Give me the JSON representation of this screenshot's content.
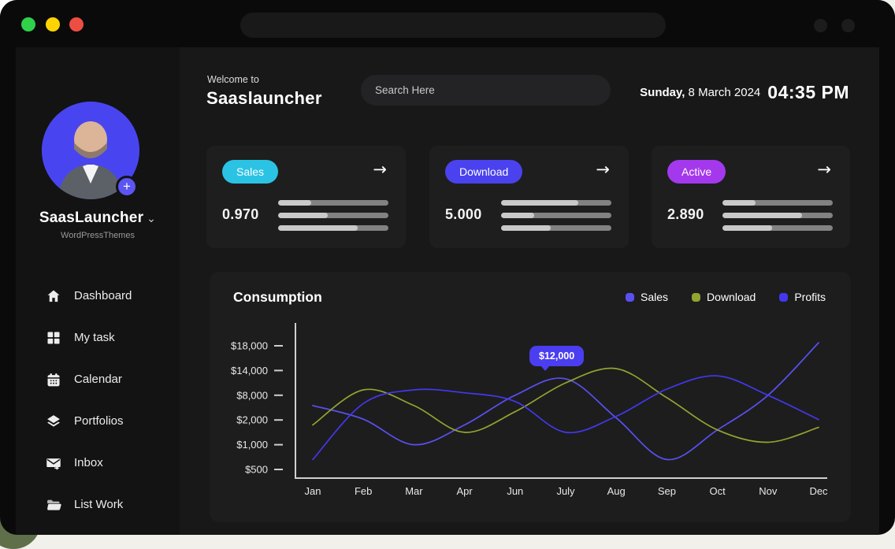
{
  "window": {
    "traffic_lights": {
      "green": "#2fd14b",
      "yellow": "#fdd402",
      "red": "#ee4d42"
    }
  },
  "icons": {
    "arrow_right": "→",
    "caret_down": "⌄",
    "plus": "+"
  },
  "sidebar": {
    "profile": {
      "name": "SaasLauncher",
      "subtitle": "WordPressThemes"
    },
    "items": [
      {
        "label": "Dashboard",
        "icon": "home-icon"
      },
      {
        "label": "My task",
        "icon": "grid-icon"
      },
      {
        "label": "Calendar",
        "icon": "calendar-icon"
      },
      {
        "label": "Portfolios",
        "icon": "layers-icon"
      },
      {
        "label": "Inbox",
        "icon": "inbox-icon"
      },
      {
        "label": "List Work",
        "icon": "folder-icon"
      }
    ]
  },
  "header": {
    "welcome": "Welcome to",
    "title": "Saaslauncher",
    "search_placeholder": "Search Here",
    "date": {
      "day": "Sunday,",
      "rest": " 8 March 2024",
      "time": "04:35 PM"
    }
  },
  "stat_cards": [
    {
      "badge": "Sales",
      "badge_color": "#2bc3e4",
      "value": "0.970",
      "bars": [
        30,
        45,
        72
      ]
    },
    {
      "badge": "Download",
      "badge_color": "#4a42ee",
      "value": "5.000",
      "bars": [
        70,
        30,
        45
      ]
    },
    {
      "badge": "Active",
      "badge_color": "#a438ec",
      "value": "2.890",
      "bars": [
        30,
        72,
        45
      ]
    }
  ],
  "chart_data": {
    "type": "line",
    "title": "Consumption",
    "categories": [
      "Jan",
      "Feb",
      "Mar",
      "Apr",
      "Jun",
      "July",
      "Aug",
      "Sep",
      "Oct",
      "Nov",
      "Dec"
    ],
    "y_ticks": {
      "labels": [
        "$18,000",
        "$14,000",
        "$8,000",
        "$2,000",
        "$1,000",
        "$500"
      ],
      "values": [
        18000,
        14000,
        8000,
        2000,
        1000,
        500
      ]
    },
    "grid": false,
    "legend_position": "top-right",
    "series": [
      {
        "name": "Sales",
        "color": "#5a50f2",
        "values": [
          5500,
          2200,
          1000,
          1800,
          8000,
          12000,
          2500,
          700,
          1600,
          8000,
          18500
        ]
      },
      {
        "name": "Download",
        "color": "#93a430",
        "values": [
          1800,
          9300,
          5500,
          1500,
          4000,
          11000,
          14300,
          7400,
          1600,
          1100,
          1700
        ]
      },
      {
        "name": "Profits",
        "color": "#4338ee",
        "values": [
          700,
          6000,
          9300,
          8600,
          6500,
          1500,
          2900,
          9500,
          12700,
          8000,
          2100
        ]
      }
    ],
    "tooltip": {
      "text": "$12,000",
      "series": "Sales",
      "category": "July"
    }
  }
}
